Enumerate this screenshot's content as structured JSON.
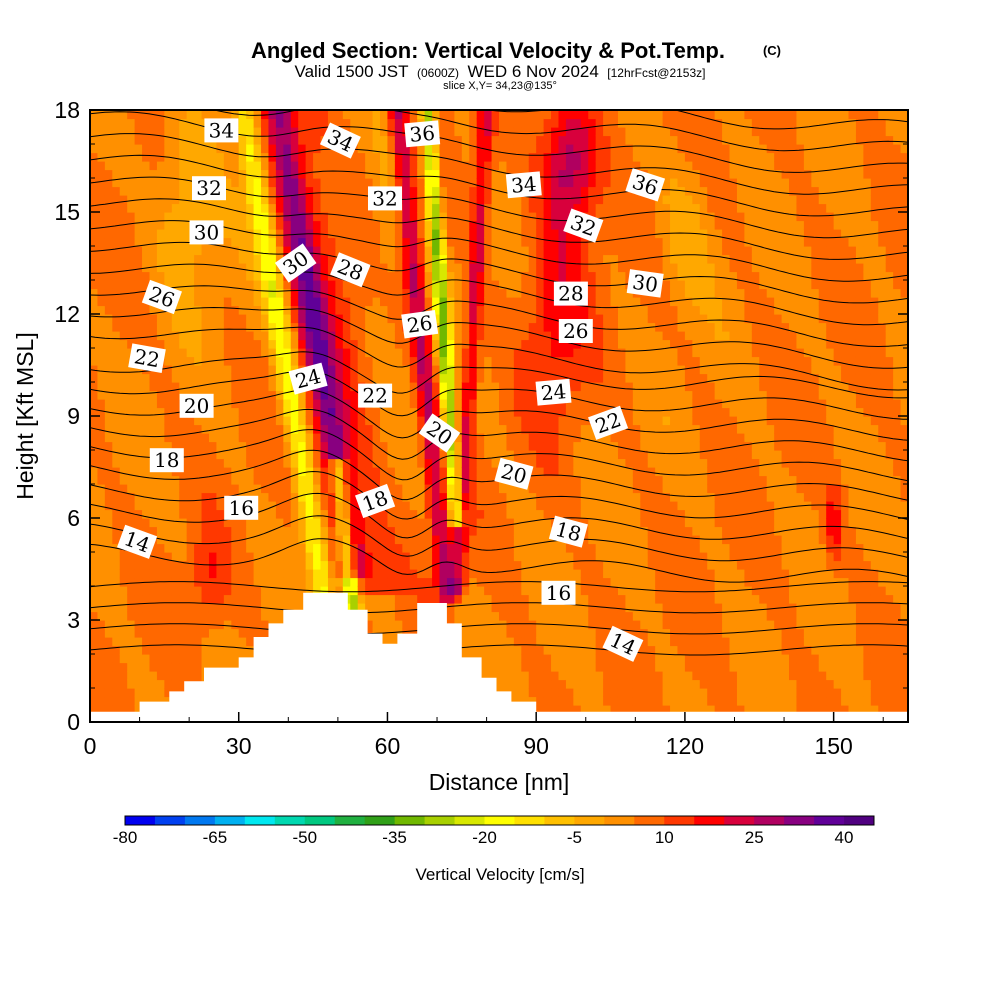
{
  "chart_data": {
    "type": "heatmap",
    "title": "Angled Section: Vertical Velocity & Pot.Temp.",
    "title_mark": "(C)",
    "subtitle": {
      "main_prefix": "Valid 1500 JST",
      "zulu": "(0600Z)",
      "main_date": "WED 6 Nov 2024",
      "fcst": "[12hrFcst@2153z]"
    },
    "slice_label": "slice X,Y= 34,23@135°",
    "xlabel": "Distance [nm]",
    "ylabel": "Height [Kft MSL]",
    "xlim": [
      0,
      165
    ],
    "ylim": [
      0,
      18
    ],
    "x_ticks": [
      0,
      30,
      60,
      90,
      120,
      150
    ],
    "y_ticks": [
      0,
      3,
      6,
      9,
      12,
      15,
      18
    ],
    "colorbar": {
      "label": "Vertical Velocity [cm/s]",
      "min": -80,
      "max": 45,
      "step": 5,
      "tick_values": [
        -80,
        -65,
        -50,
        -35,
        -20,
        -5,
        10,
        25,
        40
      ],
      "colors": [
        "#0000f0",
        "#0040f0",
        "#0078f0",
        "#00b0f0",
        "#00e8f0",
        "#00d8b0",
        "#00c880",
        "#20b040",
        "#30a018",
        "#70b800",
        "#a8d000",
        "#d8e800",
        "#ffff00",
        "#ffe000",
        "#ffc000",
        "#ffa800",
        "#ff9000",
        "#ff6800",
        "#ff3800",
        "#ff0000",
        "#d8003c",
        "#b00060",
        "#880080",
        "#600098",
        "#500080"
      ]
    },
    "terrain_profile": [
      [
        0,
        0.3
      ],
      [
        10,
        0.3
      ],
      [
        10,
        0.6
      ],
      [
        16,
        0.6
      ],
      [
        16,
        0.9
      ],
      [
        19,
        0.9
      ],
      [
        19,
        1.2
      ],
      [
        23,
        1.2
      ],
      [
        23,
        1.6
      ],
      [
        30,
        1.6
      ],
      [
        30,
        1.9
      ],
      [
        33,
        1.9
      ],
      [
        33,
        2.5
      ],
      [
        36,
        2.5
      ],
      [
        36,
        2.9
      ],
      [
        39,
        2.9
      ],
      [
        39,
        3.3
      ],
      [
        43,
        3.3
      ],
      [
        43,
        3.8
      ],
      [
        52,
        3.8
      ],
      [
        52,
        3.3
      ],
      [
        56,
        3.3
      ],
      [
        56,
        2.6
      ],
      [
        59,
        2.6
      ],
      [
        59,
        2.3
      ],
      [
        62,
        2.3
      ],
      [
        62,
        2.6
      ],
      [
        66,
        2.6
      ],
      [
        66,
        3.5
      ],
      [
        72,
        3.5
      ],
      [
        72,
        2.9
      ],
      [
        75,
        2.9
      ],
      [
        75,
        1.9
      ],
      [
        79,
        1.9
      ],
      [
        79,
        1.3
      ],
      [
        82,
        1.3
      ],
      [
        82,
        0.9
      ],
      [
        85,
        0.9
      ],
      [
        85,
        0.6
      ],
      [
        90,
        0.6
      ],
      [
        90,
        0.3
      ],
      [
        165,
        0.3
      ]
    ],
    "velocity_features": [
      {
        "kind": "background",
        "value": 5
      },
      {
        "kind": "band",
        "value": 28,
        "top": [
          38,
          18
        ],
        "bottom": [
          53,
          4.5
        ],
        "width": 4.5
      },
      {
        "kind": "band",
        "value": 14,
        "top": [
          42,
          18
        ],
        "bottom": [
          56,
          4
        ],
        "width": 9
      },
      {
        "kind": "band",
        "value": -18,
        "top": [
          31,
          18
        ],
        "bottom": [
          48,
          3
        ],
        "width": 3.5
      },
      {
        "kind": "band",
        "value": -32,
        "top": [
          50,
          7.5
        ],
        "bottom": [
          53,
          3.2
        ],
        "width": 2.5
      },
      {
        "kind": "band",
        "value": -30,
        "top": [
          68,
          18
        ],
        "bottom": [
          74,
          6
        ],
        "width": 2.2
      },
      {
        "kind": "band",
        "value": 26,
        "top": [
          62,
          18
        ],
        "bottom": [
          72,
          3.8
        ],
        "width": 3
      },
      {
        "kind": "band",
        "value": 22,
        "top": [
          80,
          18
        ],
        "bottom": [
          74,
          4
        ],
        "width": 2.5
      },
      {
        "kind": "blob",
        "value": 30,
        "center": [
          97,
          16.5
        ],
        "radius": [
          6,
          2.2
        ]
      },
      {
        "kind": "blob",
        "value": 18,
        "center": [
          94,
          12
        ],
        "radius": [
          7,
          3.5
        ]
      },
      {
        "kind": "blob",
        "value": 14,
        "center": [
          24,
          4.2
        ],
        "radius": [
          4,
          1.6
        ]
      },
      {
        "kind": "blob",
        "value": 18,
        "center": [
          150,
          5.8
        ],
        "radius": [
          2,
          1.2
        ]
      },
      {
        "kind": "blob",
        "value": -6,
        "center": [
          20,
          15.5
        ],
        "radius": [
          7,
          3
        ]
      },
      {
        "kind": "blob",
        "value": -3,
        "center": [
          120,
          14.5
        ],
        "radius": [
          6,
          2.5
        ]
      },
      {
        "kind": "blob",
        "value": -2,
        "center": [
          60,
          15
        ],
        "radius": [
          4,
          3
        ]
      }
    ],
    "theta_contours": {
      "levels": [
        10,
        11,
        12,
        13,
        14,
        15,
        16,
        17,
        18,
        19,
        20,
        21,
        22,
        23,
        24,
        25,
        26,
        27,
        28,
        29,
        30,
        31,
        32,
        33,
        34,
        35,
        36,
        37,
        38
      ],
      "base_height_at_14": 4.6,
      "kft_per_degree": 0.62,
      "labels": [
        {
          "text": "34",
          "x": 26.5,
          "y": 17.4,
          "rotation": 0
        },
        {
          "text": "34",
          "x": 50.5,
          "y": 17.1,
          "rotation": 25
        },
        {
          "text": "36",
          "x": 67,
          "y": 17.3,
          "rotation": -5
        },
        {
          "text": "32",
          "x": 24,
          "y": 15.7,
          "rotation": 0
        },
        {
          "text": "32",
          "x": 59.5,
          "y": 15.4,
          "rotation": 0
        },
        {
          "text": "34",
          "x": 87.5,
          "y": 15.8,
          "rotation": -5
        },
        {
          "text": "36",
          "x": 112,
          "y": 15.8,
          "rotation": 18
        },
        {
          "text": "30",
          "x": 23.5,
          "y": 14.4,
          "rotation": 0
        },
        {
          "text": "30",
          "x": 41.5,
          "y": 13.5,
          "rotation": -35
        },
        {
          "text": "32",
          "x": 99.5,
          "y": 14.6,
          "rotation": 20
        },
        {
          "text": "28",
          "x": 52.5,
          "y": 13.3,
          "rotation": 22
        },
        {
          "text": "30",
          "x": 112,
          "y": 12.9,
          "rotation": 8
        },
        {
          "text": "26",
          "x": 14.5,
          "y": 12.5,
          "rotation": 20
        },
        {
          "text": "28",
          "x": 97,
          "y": 12.6,
          "rotation": 0
        },
        {
          "text": "26",
          "x": 66.5,
          "y": 11.7,
          "rotation": -8
        },
        {
          "text": "26",
          "x": 98,
          "y": 11.5,
          "rotation": 0
        },
        {
          "text": "22",
          "x": 11.5,
          "y": 10.7,
          "rotation": 10
        },
        {
          "text": "24",
          "x": 44,
          "y": 10.1,
          "rotation": -15
        },
        {
          "text": "22",
          "x": 57.5,
          "y": 9.6,
          "rotation": 0
        },
        {
          "text": "24",
          "x": 93.5,
          "y": 9.7,
          "rotation": -5
        },
        {
          "text": "22",
          "x": 104.5,
          "y": 8.8,
          "rotation": -20
        },
        {
          "text": "20",
          "x": 21.5,
          "y": 9.3,
          "rotation": 0
        },
        {
          "text": "20",
          "x": 70.5,
          "y": 8.5,
          "rotation": 35
        },
        {
          "text": "18",
          "x": 15.5,
          "y": 7.7,
          "rotation": 0
        },
        {
          "text": "20",
          "x": 85.5,
          "y": 7.3,
          "rotation": 15
        },
        {
          "text": "18",
          "x": 57.5,
          "y": 6.5,
          "rotation": -20
        },
        {
          "text": "16",
          "x": 30.5,
          "y": 6.3,
          "rotation": 0
        },
        {
          "text": "18",
          "x": 96.5,
          "y": 5.6,
          "rotation": 15
        },
        {
          "text": "14",
          "x": 9.5,
          "y": 5.3,
          "rotation": 20
        },
        {
          "text": "16",
          "x": 94.5,
          "y": 3.8,
          "rotation": 0
        },
        {
          "text": "14",
          "x": 107.5,
          "y": 2.3,
          "rotation": 25
        }
      ]
    }
  }
}
